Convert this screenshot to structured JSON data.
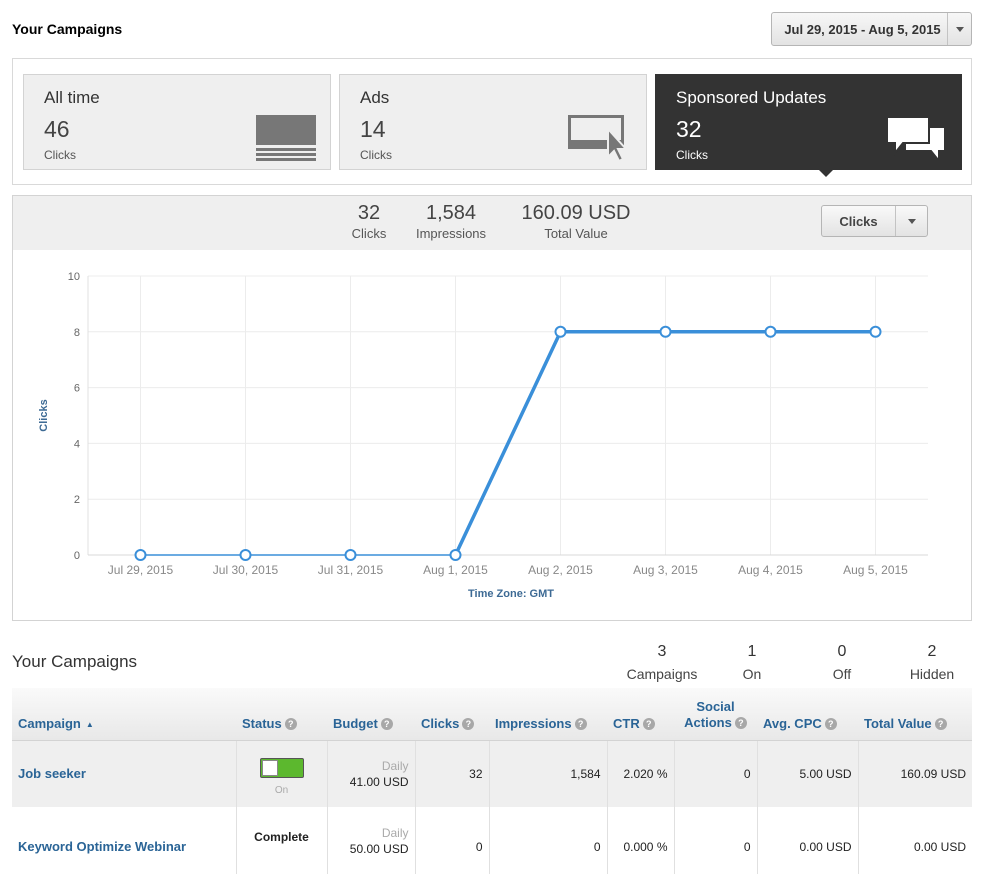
{
  "header": {
    "title": "Your Campaigns",
    "date_range": "Jul 29, 2015 - Aug 5, 2015"
  },
  "tiles": [
    {
      "title": "All time",
      "value": "46",
      "unit": "Clicks",
      "icon": "list-icon",
      "active": false
    },
    {
      "title": "Ads",
      "value": "14",
      "unit": "Clicks",
      "icon": "ad-cursor-icon",
      "active": false
    },
    {
      "title": "Sponsored Updates",
      "value": "32",
      "unit": "Clicks",
      "icon": "chat-bubbles-icon",
      "active": true
    }
  ],
  "summary": {
    "clicks_value": "32",
    "clicks_label": "Clicks",
    "impressions_value": "1,584",
    "impressions_label": "Impressions",
    "total_value": "160.09 USD",
    "total_label": "Total Value",
    "metric_select": "Clicks"
  },
  "chart_data": {
    "type": "line",
    "x": [
      "Jul 29, 2015",
      "Jul 30, 2015",
      "Jul 31, 2015",
      "Aug 1, 2015",
      "Aug 2, 2015",
      "Aug 3, 2015",
      "Aug 4, 2015",
      "Aug 5, 2015"
    ],
    "series": [
      {
        "values": [
          0,
          0,
          0,
          0,
          8,
          8,
          8,
          8
        ]
      }
    ],
    "ylabel": "Clicks",
    "xlabel": "Time Zone: GMT",
    "yticks": [
      "0",
      "2",
      "4",
      "6",
      "8",
      "10"
    ],
    "ylim": [
      0,
      10
    ],
    "grid": true,
    "line_color": "#3a8fd9"
  },
  "campaigns_section": {
    "title": "Your Campaigns",
    "counts": [
      {
        "value": "3",
        "label": "Campaigns"
      },
      {
        "value": "1",
        "label": "On"
      },
      {
        "value": "0",
        "label": "Off"
      },
      {
        "value": "2",
        "label": "Hidden"
      }
    ]
  },
  "table": {
    "headers": {
      "campaign": "Campaign",
      "status": "Status",
      "budget": "Budget",
      "clicks": "Clicks",
      "impressions": "Impressions",
      "ctr": "CTR",
      "social_1": "Social",
      "social_2": "Actions",
      "cpc": "Avg. CPC",
      "total": "Total Value"
    },
    "rows": [
      {
        "name": "Job seeker",
        "status": "On",
        "budget_type": "Daily",
        "budget": "41.00 USD",
        "clicks": "32",
        "impressions": "1,584",
        "ctr": "2.020 %",
        "social": "0",
        "cpc": "5.00 USD",
        "total": "160.09 USD"
      },
      {
        "name": "Keyword Optimize Webinar",
        "status": "Complete",
        "budget_type": "Daily",
        "budget": "50.00 USD",
        "clicks": "0",
        "impressions": "0",
        "ctr": "0.000 %",
        "social": "0",
        "cpc": "0.00 USD",
        "total": "0.00 USD"
      }
    ]
  }
}
